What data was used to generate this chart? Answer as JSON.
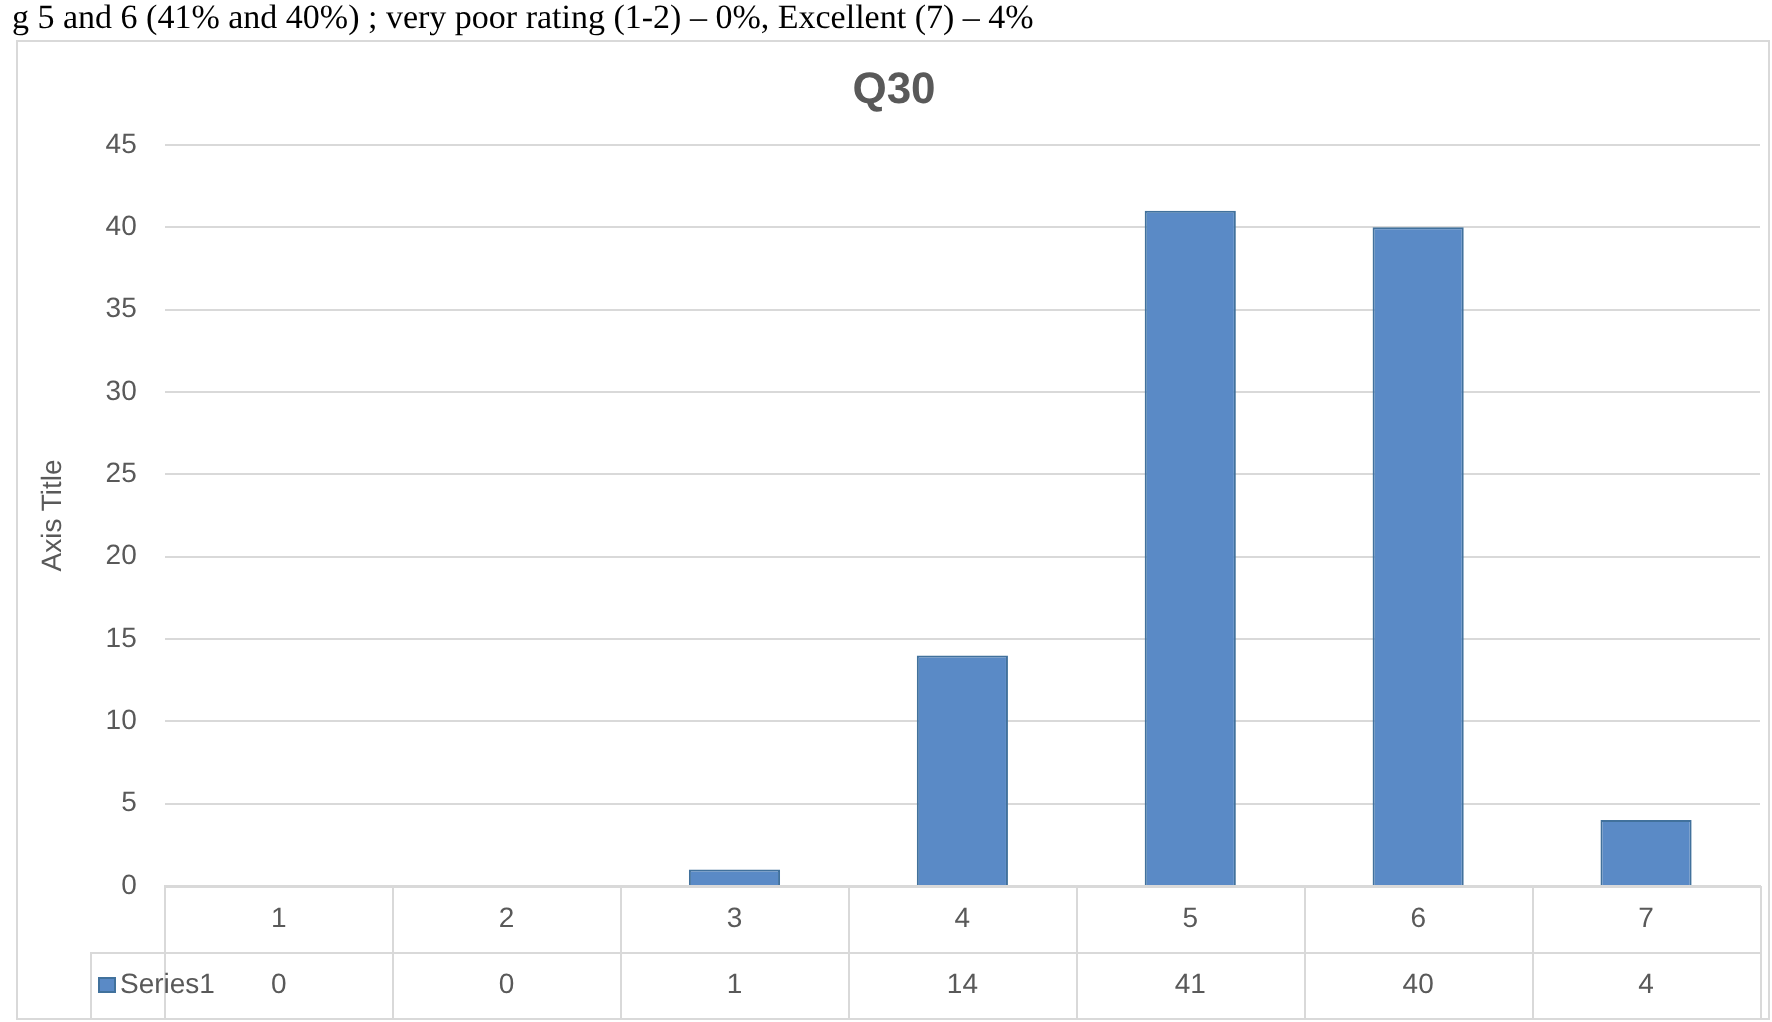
{
  "chart_data": {
    "type": "bar",
    "title": "Q30",
    "ylabel": "Axis Title",
    "annotations": [
      "g 5 and 6 (41% and 40%) ; very poor rating (1-2) – 0%, Excellent (7) – 4%"
    ],
    "categories": [
      "1",
      "2",
      "3",
      "4",
      "5",
      "6",
      "7"
    ],
    "series": [
      {
        "name": "Series1",
        "color": "#5a8ac6",
        "values": [
          0,
          0,
          1,
          14,
          41,
          40,
          4
        ]
      }
    ],
    "ylim": [
      0,
      45
    ],
    "yticks": [
      0,
      5,
      10,
      15,
      20,
      25,
      30,
      35,
      40,
      45
    ],
    "grid": "y",
    "data_labels": true,
    "legend": "bottom"
  }
}
